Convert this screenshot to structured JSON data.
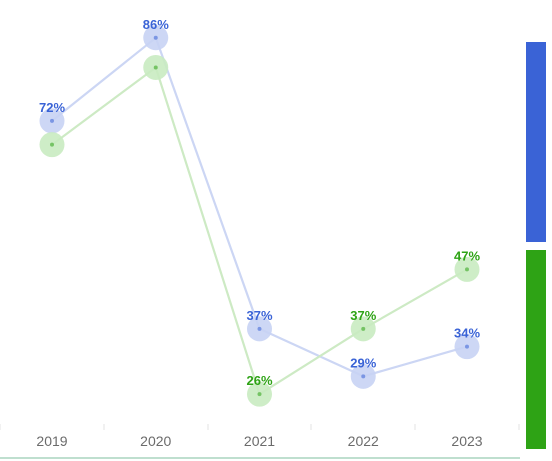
{
  "chart_data": {
    "type": "line",
    "title": "",
    "xlabel": "",
    "ylabel": "",
    "categories": [
      "2019",
      "2020",
      "2021",
      "2022",
      "2023"
    ],
    "ylim": [
      0,
      100
    ],
    "grid": false,
    "legend": "right (color swatches only, no text)",
    "series": [
      {
        "values": [
          72,
          86,
          37,
          29,
          34
        ],
        "labels": [
          "72%",
          "86%",
          "37%",
          "29%",
          "34%"
        ],
        "color": "#3a63d6",
        "line_color": "#ccd6f4",
        "marker_color": "#c8d3f4"
      },
      {
        "values": [
          68,
          81,
          26,
          37,
          47
        ],
        "labels": [
          "",
          "",
          "26%",
          "37%",
          "47%"
        ],
        "color": "#2ea315",
        "line_color": "#cdeac4",
        "marker_color": "#c9ebc1"
      }
    ]
  },
  "colors": {
    "axis": "#7fbf9f",
    "tick_text": "#6b6b6b",
    "legend_blue": "#3a63d6",
    "legend_green": "#2ea315"
  }
}
